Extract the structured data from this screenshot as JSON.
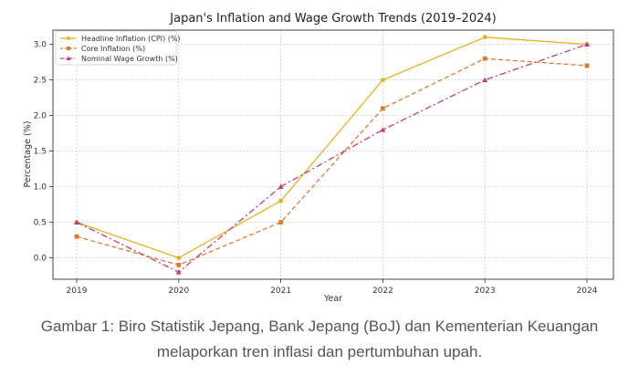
{
  "chart_data": {
    "type": "line",
    "title": "Japan's Inflation and Wage Growth Trends (2019–2024)",
    "xlabel": "Year",
    "ylabel": "Percentage (%)",
    "x": [
      "2019",
      "2020",
      "2021",
      "2022",
      "2023",
      "2024"
    ],
    "y_ticks": [
      "0.0",
      "0.5",
      "1.0",
      "1.5",
      "2.0",
      "2.5",
      "3.0"
    ],
    "ylim": [
      -0.3,
      3.2
    ],
    "grid": true,
    "legend_position": "top-left",
    "series": [
      {
        "name": "Headline Inflation (CPI) (%)",
        "values": [
          0.5,
          0.0,
          0.8,
          2.5,
          3.1,
          3.0
        ],
        "color": "#E8B21E",
        "marker": "circle",
        "line_style": "solid"
      },
      {
        "name": "Core Inflation (%)",
        "values": [
          0.3,
          -0.1,
          0.5,
          2.1,
          2.8,
          2.7
        ],
        "color": "#E07A2E",
        "marker": "square",
        "line_style": "dashed"
      },
      {
        "name": "Nominal Wage Growth (%)",
        "values": [
          0.5,
          -0.2,
          1.0,
          1.8,
          2.5,
          3.0
        ],
        "color": "#C23B7E",
        "marker": "triangle",
        "line_style": "dashdot"
      }
    ]
  },
  "caption": {
    "line1": "Gambar 1: Biro Statistik Jepang, Bank Jepang (BoJ) dan Kementerian Keuangan",
    "line2": "melaporkan tren inflasi dan pertumbuhan upah."
  }
}
